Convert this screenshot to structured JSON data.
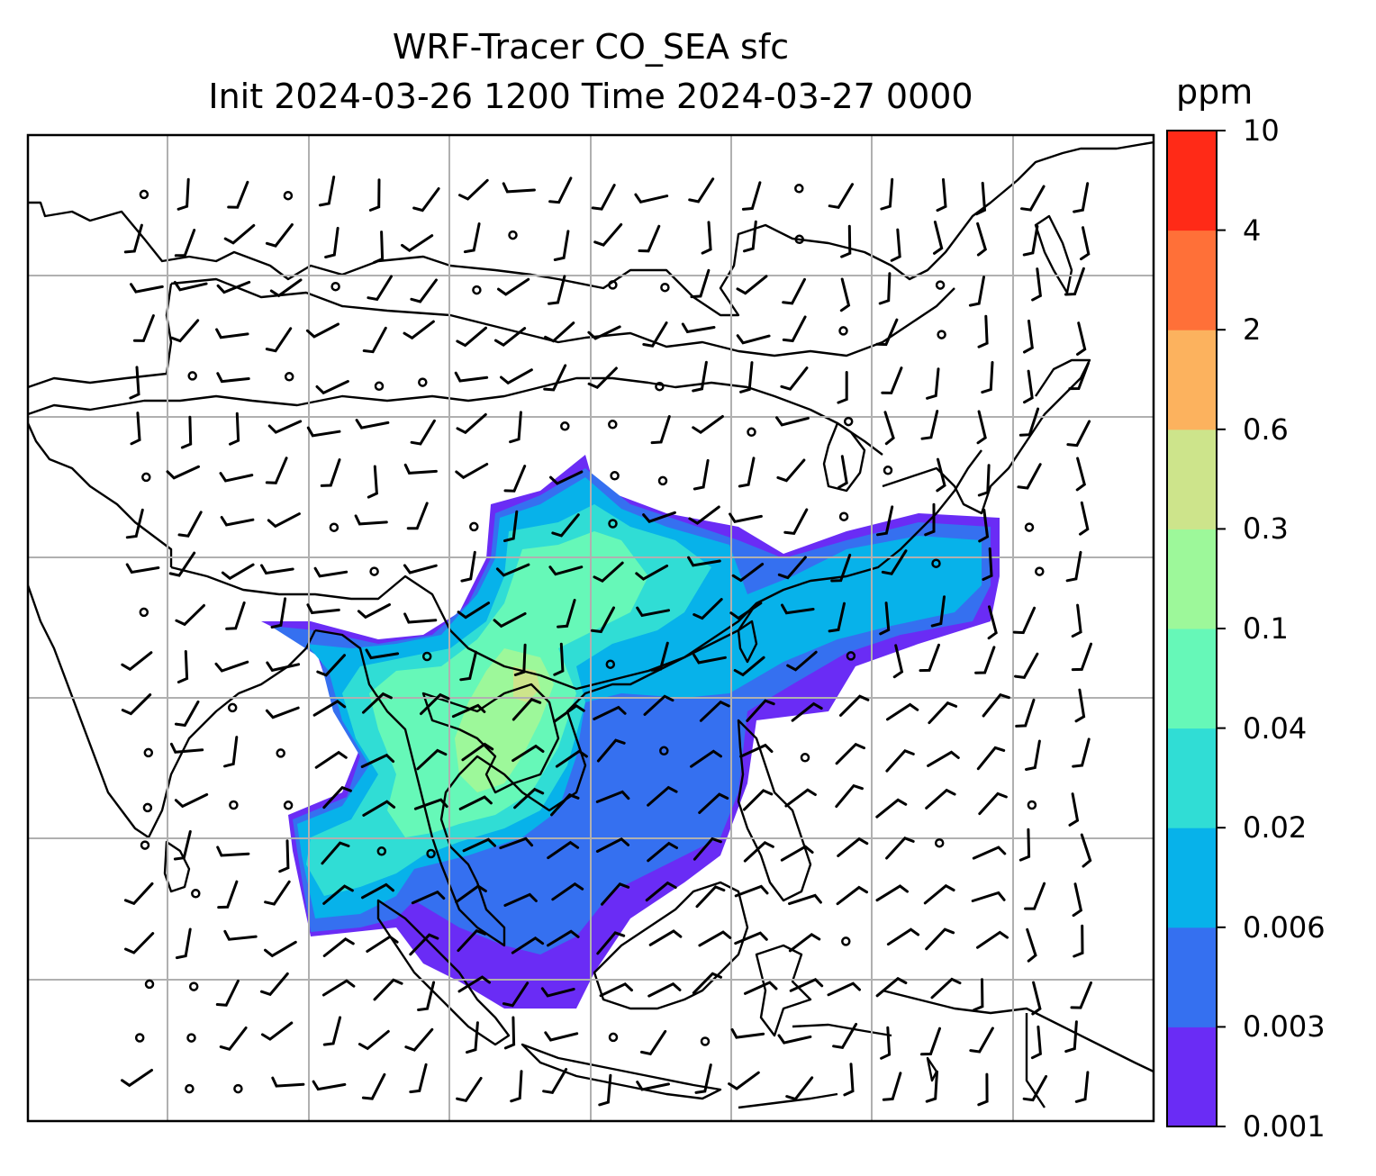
{
  "title_line1": "WRF-Tracer CO_SEA sfc",
  "title_line2": "Init 2024-03-26 1200 Time 2024-03-27 0000",
  "units": "ppm",
  "colorbar": {
    "levels": [
      "0.001",
      "0.003",
      "0.006",
      "0.02",
      "0.04",
      "0.1",
      "0.3",
      "0.6",
      "2",
      "4",
      "10"
    ],
    "colors": [
      "#6a2cf5",
      "#3570f0",
      "#07b2ea",
      "#30ddd5",
      "#66f8b8",
      "#9df89a",
      "#cde48b",
      "#fcb25e",
      "#ff7038",
      "#ff2a17"
    ]
  },
  "map": {
    "background": "#ffffff",
    "coastline_color": "#000000",
    "gridline_color": "#b0b0b0",
    "barb_color": "#000000"
  }
}
